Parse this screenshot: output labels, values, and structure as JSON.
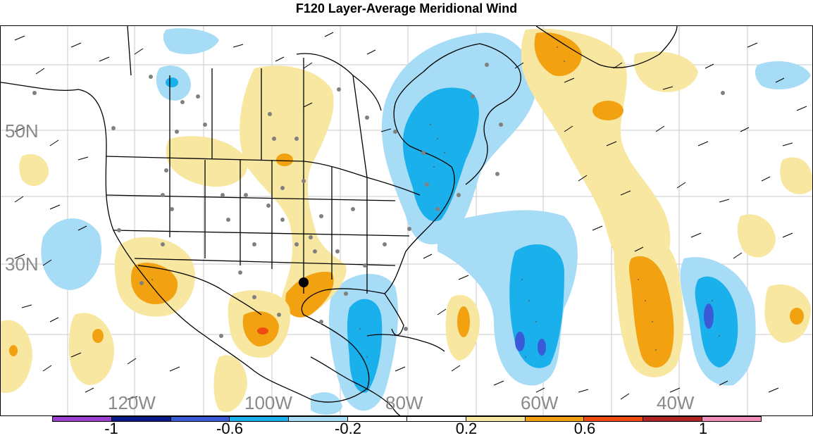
{
  "title": "F120 Layer-Average Meridional Wind",
  "lat_labels": [
    "50N",
    "30N"
  ],
  "lon_labels": [
    "120W",
    "100W",
    "80W",
    "60W",
    "40W"
  ],
  "colorbar": {
    "colors": [
      "#9a3fd0",
      "#0a1a8a",
      "#3a5ad8",
      "#1ab0ec",
      "#a6dcf6",
      "#ffffff",
      "#ffffff",
      "#f8e7a0",
      "#f2a210",
      "#ef4a10",
      "#b02424",
      "#f08cb8"
    ],
    "tick_labels": [
      "-1",
      "-0.6",
      "-0.2",
      "0.2",
      "0.6",
      "1"
    ]
  },
  "colors": {
    "pos_light": "#f8e7a0",
    "pos_mid": "#f2a210",
    "pos_strong": "#ef4a10",
    "neg_light": "#a6dcf6",
    "neg_mid": "#1ab0ec",
    "neg_strong": "#3a5ad8"
  },
  "marker": "storm-center-marker"
}
